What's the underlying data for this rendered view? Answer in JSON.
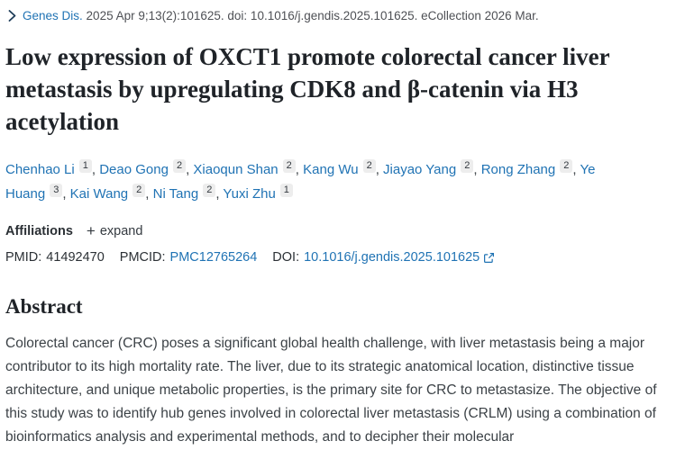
{
  "colors": {
    "link_blue": "#2073b4",
    "chevron_navy": "#1e3d59",
    "text_dark": "#1f2328",
    "text_gray": "#4e5055",
    "badge_bg": "#ededed"
  },
  "breadcrumb": {
    "journal": "Genes Dis.",
    "citation": "2025 Apr 9;13(2):101625. doi: 10.1016/j.gendis.2025.101625. eCollection 2026 Mar."
  },
  "title": "Low expression of OXCT1 promote colorectal cancer liver metastasis by upregulating CDK8 and β-catenin via H3 acetylation",
  "authors": [
    {
      "name": "Chenhao Li",
      "sup": "1"
    },
    {
      "name": "Deao Gong",
      "sup": "2"
    },
    {
      "name": "Xiaoqun Shan",
      "sup": "2"
    },
    {
      "name": "Kang Wu",
      "sup": "2"
    },
    {
      "name": "Jiayao Yang",
      "sup": "2"
    },
    {
      "name": "Rong Zhang",
      "sup": "2"
    },
    {
      "name": "Ye Huang",
      "sup": "3"
    },
    {
      "name": "Kai Wang",
      "sup": "2"
    },
    {
      "name": "Ni Tang",
      "sup": "2"
    },
    {
      "name": "Yuxi Zhu",
      "sup": "1"
    }
  ],
  "affiliations": {
    "label": "Affiliations",
    "expand_icon": "+",
    "expand_label": "expand"
  },
  "ids": {
    "pmid_label": "PMID:",
    "pmid_value": "41492470",
    "pmcid_label": "PMCID:",
    "pmcid_value": "PMC12765264",
    "doi_label": "DOI:",
    "doi_value": "10.1016/j.gendis.2025.101625"
  },
  "abstract": {
    "heading": "Abstract",
    "text": "Colorectal cancer (CRC) poses a significant global health challenge, with liver metastasis being a major contributor to its high mortality rate. The liver, due to its strategic anatomical location, distinctive tissue architecture, and unique metabolic properties, is the primary site for CRC to metastasize. The objective of this study was to identify hub genes involved in colorectal liver metastasis (CRLM) using a combination of bioinformatics analysis and experimental methods, and to decipher their molecular"
  }
}
